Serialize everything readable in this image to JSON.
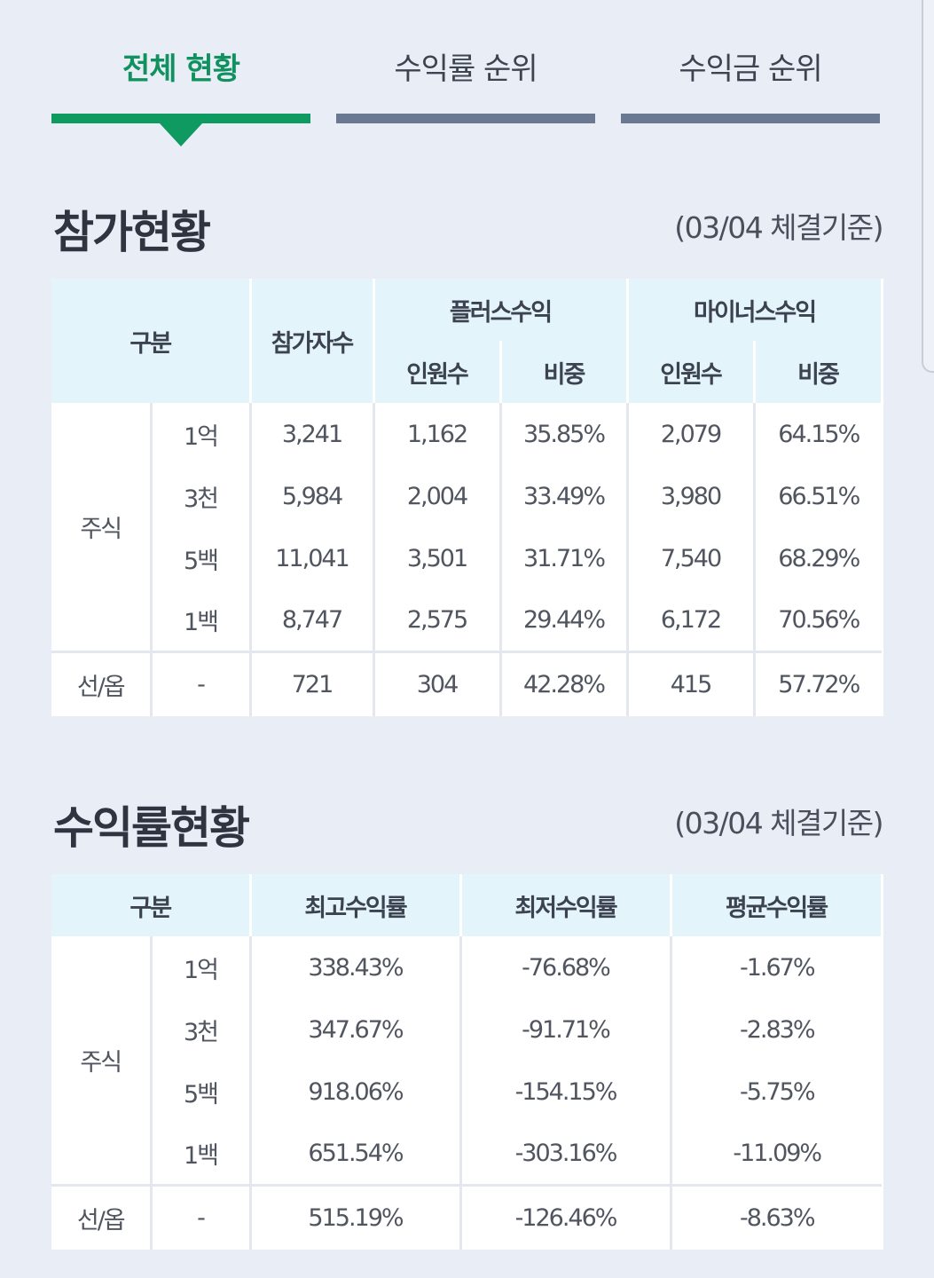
{
  "tabs": [
    {
      "label": "전체 현황",
      "active": true
    },
    {
      "label": "수익률 순위",
      "active": false
    },
    {
      "label": "수익금 순위",
      "active": false
    }
  ],
  "participation": {
    "title": "참가현황",
    "note": "(03/04 체결기준)",
    "headers": {
      "category": "구분",
      "participants": "참가자수",
      "plus": "플러스수익",
      "minus": "마이너스수익",
      "count": "인원수",
      "ratio": "비중"
    },
    "group_stock": "주식",
    "rows": [
      {
        "sub": "1억",
        "participants": "3,241",
        "plus_count": "1,162",
        "plus_ratio": "35.85%",
        "minus_count": "2,079",
        "minus_ratio": "64.15%"
      },
      {
        "sub": "3천",
        "participants": "5,984",
        "plus_count": "2,004",
        "plus_ratio": "33.49%",
        "minus_count": "3,980",
        "minus_ratio": "66.51%"
      },
      {
        "sub": "5백",
        "participants": "11,041",
        "plus_count": "3,501",
        "plus_ratio": "31.71%",
        "minus_count": "7,540",
        "minus_ratio": "68.29%"
      },
      {
        "sub": "1백",
        "participants": "8,747",
        "plus_count": "2,575",
        "plus_ratio": "29.44%",
        "minus_count": "6,172",
        "minus_ratio": "70.56%"
      }
    ],
    "futures": {
      "group": "선/옵",
      "sub": "-",
      "participants": "721",
      "plus_count": "304",
      "plus_ratio": "42.28%",
      "minus_count": "415",
      "minus_ratio": "57.72%"
    }
  },
  "returns": {
    "title": "수익률현황",
    "note": "(03/04 체결기준)",
    "headers": {
      "category": "구분",
      "max": "최고수익률",
      "min": "최저수익률",
      "avg": "평균수익률"
    },
    "group_stock": "주식",
    "rows": [
      {
        "sub": "1억",
        "max": "338.43%",
        "min": "-76.68%",
        "avg": "-1.67%"
      },
      {
        "sub": "3천",
        "max": "347.67%",
        "min": "-91.71%",
        "avg": "-2.83%"
      },
      {
        "sub": "5백",
        "max": "918.06%",
        "min": "-154.15%",
        "avg": "-5.75%"
      },
      {
        "sub": "1백",
        "max": "651.54%",
        "min": "-303.16%",
        "avg": "-11.09%"
      }
    ],
    "futures": {
      "group": "선/옵",
      "sub": "-",
      "max": "515.19%",
      "min": "-126.46%",
      "avg": "-8.63%"
    }
  }
}
